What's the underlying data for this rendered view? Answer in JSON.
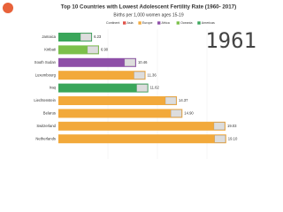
{
  "chart_data": {
    "type": "bar",
    "title": "Top 10 Countries with Lowest Adolescent Fertility Rate (1960- 2017)",
    "subtitle": "Births per 1,000 women ages 15-19",
    "year": "1961",
    "legend_title": "Continent",
    "legend": [
      {
        "name": "Asia",
        "color": "#e0534a"
      },
      {
        "name": "Europe",
        "color": "#f2a93b"
      },
      {
        "name": "Africa",
        "color": "#8e4fa8"
      },
      {
        "name": "Oceania",
        "color": "#7cc04b"
      },
      {
        "name": "Americas",
        "color": "#3aa65a"
      }
    ],
    "categories": [
      "Jamaica",
      "Kiribati",
      "South Sudan",
      "Luxembourg",
      "Iraq",
      "Liechtenstein",
      "Belarus",
      "Switzerland",
      "Netherlands"
    ],
    "values": [
      6.23,
      6.9,
      10.46,
      11.36,
      11.62,
      14.37,
      14.9,
      19.03,
      19.1
    ],
    "value_labels": [
      "6.23",
      "6.90",
      "10.46",
      "11.36",
      "11.62",
      "14.37",
      "14.90",
      "19.03",
      "19.10"
    ],
    "colors": [
      "#3aa65a",
      "#7cc04b",
      "#8e4fa8",
      "#f2a93b",
      "#3aa65a",
      "#f2a93b",
      "#f2a93b",
      "#f2a93b",
      "#f2a93b"
    ],
    "xlim": [
      3,
      22
    ]
  }
}
